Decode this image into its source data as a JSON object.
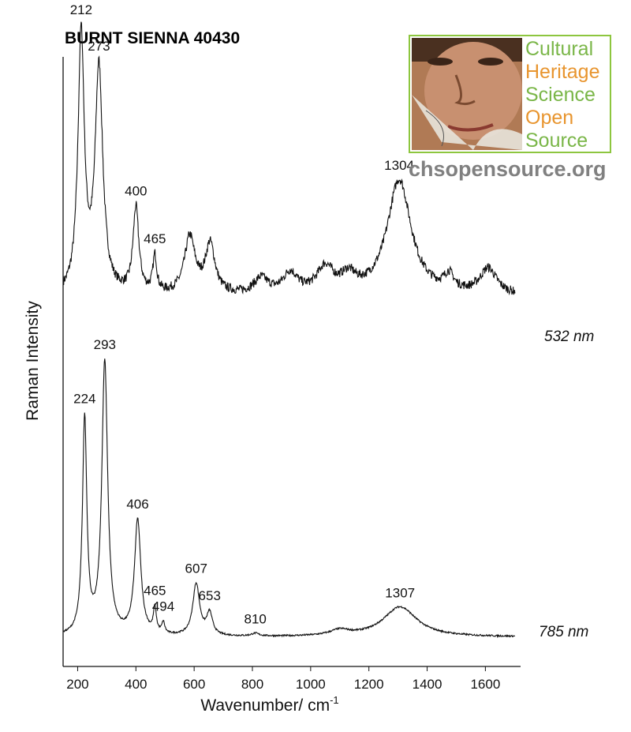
{
  "chart_data": {
    "type": "line",
    "title": "BURNT SIENNA 40430",
    "xlabel": "Wavenumber/ cm",
    "xlabel_superscript": "-1",
    "ylabel": "Raman Intensity",
    "xlim": [
      150,
      1710
    ],
    "x_ticks": [
      200,
      400,
      600,
      800,
      1000,
      1200,
      1400,
      1600
    ],
    "y_ticks": [],
    "grid": false,
    "series": [
      {
        "name": "532 nm",
        "color": "#111111",
        "baseline": 0.16,
        "noise": 0.035,
        "peaks": [
          {
            "x": 212,
            "y": 1.0,
            "w": 13,
            "label": "212"
          },
          {
            "x": 273,
            "y": 0.87,
            "w": 16,
            "label": "273"
          },
          {
            "x": 400,
            "y": 0.33,
            "w": 12,
            "label": "400"
          },
          {
            "x": 465,
            "y": 0.14,
            "w": 8,
            "label": "465"
          },
          {
            "x": 585,
            "y": 0.22,
            "w": 22
          },
          {
            "x": 655,
            "y": 0.19,
            "w": 20
          },
          {
            "x": 830,
            "y": 0.06,
            "w": 30
          },
          {
            "x": 930,
            "y": 0.08,
            "w": 30
          },
          {
            "x": 1050,
            "y": 0.1,
            "w": 35
          },
          {
            "x": 1130,
            "y": 0.06,
            "w": 30
          },
          {
            "x": 1304,
            "y": 0.45,
            "w": 50,
            "label": "1304"
          },
          {
            "x": 1475,
            "y": 0.06,
            "w": 20
          },
          {
            "x": 1610,
            "y": 0.1,
            "w": 35
          }
        ]
      },
      {
        "name": "785 nm",
        "color": "#111111",
        "baseline": 0.015,
        "noise": 0.006,
        "peaks": [
          {
            "x": 224,
            "y": 0.79,
            "w": 9,
            "label": "224"
          },
          {
            "x": 293,
            "y": 1.0,
            "w": 12,
            "label": "293"
          },
          {
            "x": 406,
            "y": 0.42,
            "w": 13,
            "label": "406"
          },
          {
            "x": 465,
            "y": 0.09,
            "w": 6,
            "label": "465"
          },
          {
            "x": 494,
            "y": 0.04,
            "w": 6,
            "label": "494"
          },
          {
            "x": 607,
            "y": 0.19,
            "w": 14,
            "label": "607"
          },
          {
            "x": 653,
            "y": 0.08,
            "w": 12,
            "label": "653"
          },
          {
            "x": 810,
            "y": 0.01,
            "w": 15,
            "label": "810"
          },
          {
            "x": 1100,
            "y": 0.02,
            "w": 40
          },
          {
            "x": 1307,
            "y": 0.11,
            "w": 70,
            "label": "1307"
          }
        ]
      }
    ]
  },
  "logo": {
    "lines": [
      "Cultural",
      "Heritage",
      "Science",
      "Open",
      "Source"
    ],
    "site": "chsopensource.org",
    "border_color": "#8dc63f",
    "green": "#7ab648",
    "orange": "#e8952f"
  }
}
